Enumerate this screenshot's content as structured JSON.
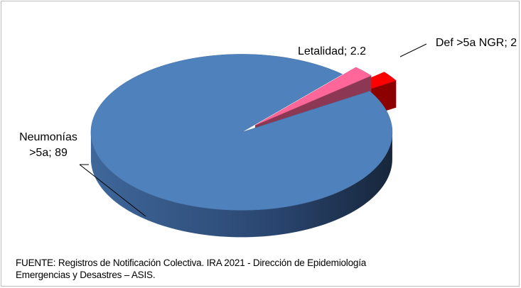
{
  "chart_data": {
    "type": "pie",
    "value_labels": [
      "Neumonías >5a; 89",
      "Letalidad; 2.2",
      "Def >5a NGR; 2"
    ],
    "values": [
      89,
      2.2,
      2
    ],
    "colors": [
      "#4f81bd",
      "#ff6699",
      "#ff0000"
    ],
    "source": "FUENTE:   Registros de Notificación Colectiva. IRA  2021 - Dirección de Epidemiología\nEmergencias y Desastres – ASIS."
  }
}
